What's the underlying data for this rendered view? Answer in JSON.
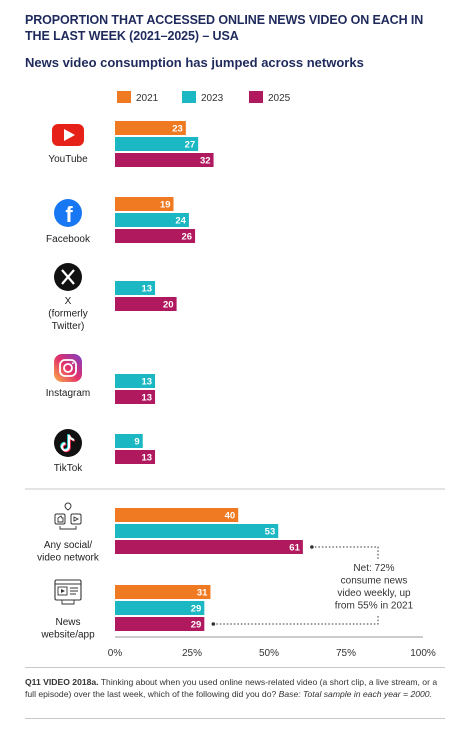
{
  "heading": "PROPORTION THAT ACCESSED ONLINE NEWS VIDEO ON EACH IN THE LAST WEEK (2021–2025) – USA",
  "subheading": "News video consumption has jumped across networks",
  "footnote": {
    "question": "Q11 VIDEO 2018a.",
    "text": " Thinking about when you used online news-related video (a short clip, a live stream, or a full episode) over the last week, which of the following did you do? ",
    "base": "Base: Total sample in each year = 2000."
  },
  "colors": {
    "2021": "#f07a22",
    "2023": "#1bb7c2",
    "2025": "#b0195e",
    "net_line": "#333333",
    "axis": "#999999"
  },
  "chart_data": {
    "type": "bar",
    "orientation": "horizontal",
    "title": "PROPORTION THAT ACCESSED ONLINE NEWS VIDEO ON EACH IN THE LAST WEEK (2021–2025) – USA",
    "subtitle": "News video consumption has jumped across networks",
    "categories": [
      "YouTube",
      "Facebook",
      "X (formerly Twitter)",
      "Instagram",
      "TikTok",
      "Any social/ video network",
      "News website/app"
    ],
    "category_labels": [
      [
        "YouTube"
      ],
      [
        "Facebook"
      ],
      [
        "X",
        "(formerly",
        "Twitter)"
      ],
      [
        "Instagram"
      ],
      [
        "TikTok"
      ],
      [
        "Any social/",
        "video network"
      ],
      [
        "News",
        "website/app"
      ]
    ],
    "category_icons": [
      "youtube-icon",
      "facebook-icon",
      "x-icon",
      "instagram-icon",
      "tiktok-icon",
      "social-network-icon",
      "news-website-icon"
    ],
    "series": [
      {
        "name": "2021",
        "values": [
          23,
          19,
          null,
          null,
          null,
          40,
          31
        ]
      },
      {
        "name": "2023",
        "values": [
          27,
          24,
          13,
          13,
          9,
          53,
          29
        ]
      },
      {
        "name": "2025",
        "values": [
          32,
          26,
          20,
          13,
          13,
          61,
          29
        ]
      }
    ],
    "x_ticks": [
      "0%",
      "25%",
      "50%",
      "75%",
      "100%"
    ],
    "xlim": [
      0,
      100
    ],
    "legend_position": "top",
    "annotation": [
      "Net: 72%",
      "consume news",
      "video weekly, up",
      "from 55% in 2021"
    ]
  }
}
